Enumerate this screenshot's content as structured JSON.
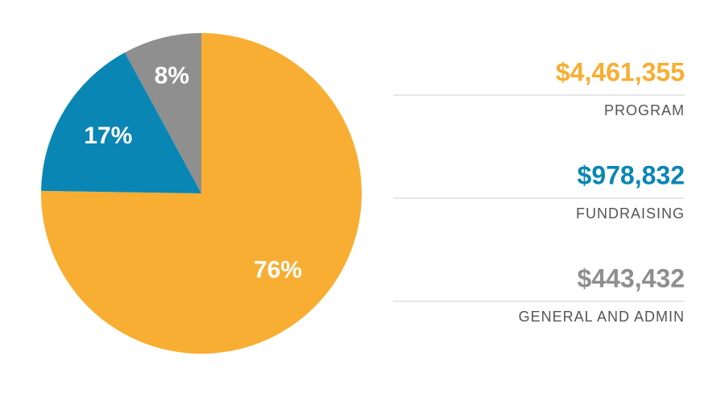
{
  "chart_data": {
    "type": "pie",
    "categories": [
      "PROGRAM",
      "FUNDRAISING",
      "GENERAL AND ADMIN"
    ],
    "values": [
      76,
      17,
      8
    ],
    "value_labels": [
      "76%",
      "17%",
      "8%"
    ],
    "amounts": [
      4461355,
      978832,
      443432
    ],
    "amount_labels": [
      "$4,461,355",
      "$978,832",
      "$443,432"
    ],
    "colors": [
      "#f8ae32",
      "#0a86b5",
      "#8f8f8f"
    ]
  }
}
